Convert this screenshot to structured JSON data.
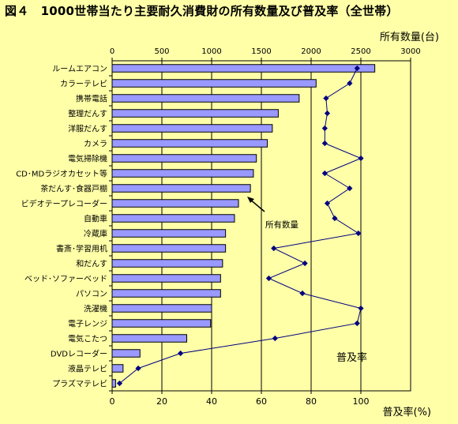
{
  "title": "図４　1000世帯当たり主要耐久消費財の所有数量及び普及率（全世帯）",
  "chart_data": {
    "type": "bar",
    "orientation": "horizontal",
    "categories": [
      "ルームエアコン",
      "カラーテレビ",
      "携帯電話",
      "整理だんす",
      "洋服だんす",
      "カメラ",
      "電気掃除機",
      "CD･MDラジオカセット等",
      "茶だんす･食器戸棚",
      "ビデオテープレコーダー",
      "自動車",
      "冷蔵庫",
      "書斎･学習用机",
      "和だんす",
      "ベッド･ソファーベッド",
      "パソコン",
      "洗濯機",
      "電子レンジ",
      "電気こたつ",
      "DVDレコーダー",
      "液晶テレビ",
      "プラズマテレビ"
    ],
    "series": [
      {
        "name": "所有数量",
        "type": "bar",
        "axis": "top",
        "color": "#9999FF",
        "values": [
          2640,
          2050,
          1880,
          1670,
          1610,
          1560,
          1450,
          1420,
          1390,
          1270,
          1230,
          1140,
          1140,
          1110,
          1090,
          1090,
          1000,
          990,
          750,
          280,
          110,
          35
        ]
      },
      {
        "name": "普及率",
        "type": "line",
        "axis": "bottom",
        "color": "#000080",
        "values": [
          98.5,
          95.5,
          86,
          86.5,
          85.5,
          85.5,
          100,
          85.5,
          95.5,
          86.5,
          89.5,
          99,
          65,
          77.5,
          63,
          76.5,
          100,
          98.5,
          65.5,
          27.5,
          10.5,
          3
        ]
      }
    ],
    "top_axis": {
      "label": "所有数量(台)",
      "range": [
        0,
        3000
      ],
      "ticks": [
        "0",
        "500",
        "1000",
        "1500",
        "2000",
        "2500",
        "3000"
      ]
    },
    "bottom_axis": {
      "label": "普及率(%)",
      "range": [
        0,
        120
      ],
      "ticks": [
        "0",
        "20",
        "40",
        "60",
        "80",
        "100"
      ]
    },
    "grid": "vertical",
    "annotations": {
      "bar_label": "所有数量",
      "line_label": "普及率"
    }
  }
}
